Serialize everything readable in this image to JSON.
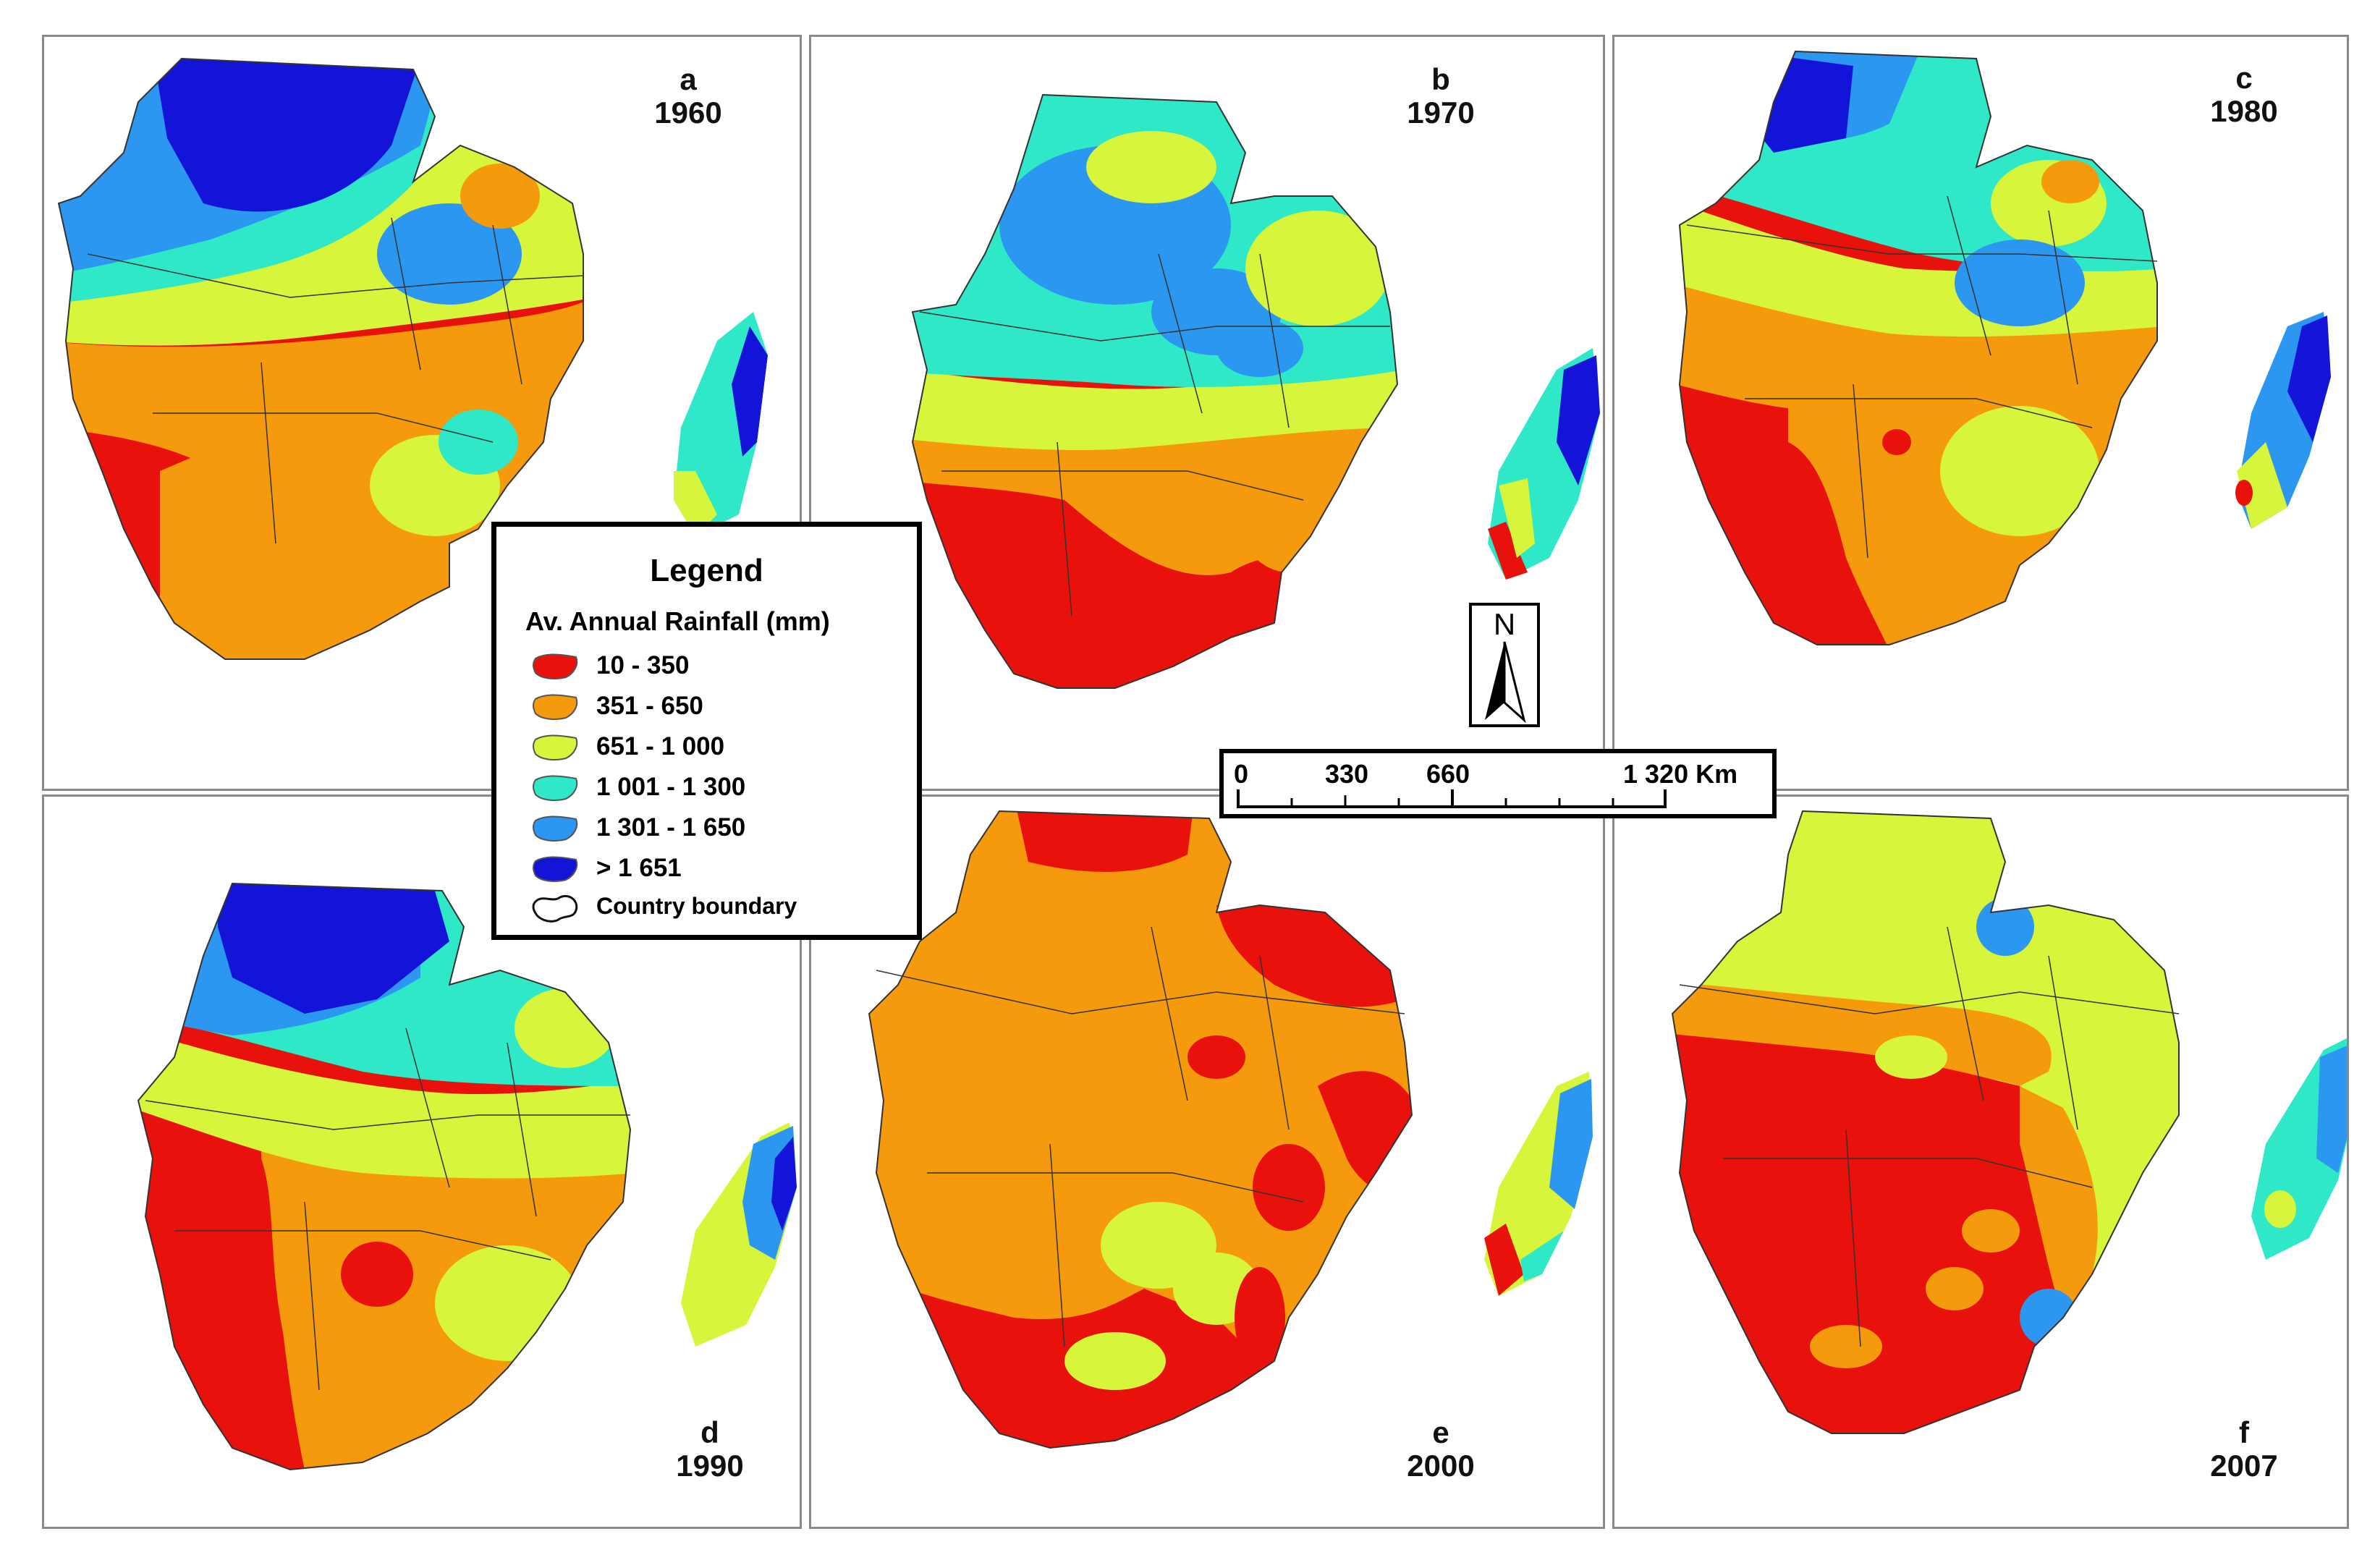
{
  "panels": [
    {
      "letter": "a",
      "year": "1960"
    },
    {
      "letter": "b",
      "year": "1970"
    },
    {
      "letter": "c",
      "year": "1980"
    },
    {
      "letter": "d",
      "year": "1990"
    },
    {
      "letter": "e",
      "year": "2000"
    },
    {
      "letter": "f",
      "year": "2007"
    }
  ],
  "legend": {
    "title": "Legend",
    "subtitle": "Av. Annual Rainfall (mm)",
    "items": [
      {
        "label": "10 - 350",
        "color": "#e8110b"
      },
      {
        "label": "351 - 650",
        "color": "#f59a0c"
      },
      {
        "label": "651 - 1 000",
        "color": "#d7f53a"
      },
      {
        "label": "1 001 - 1 300",
        "color": "#2ee8c8"
      },
      {
        "label": "1 301 - 1 650",
        "color": "#2b97f0"
      },
      {
        "label": "> 1 651",
        "color": "#1414d8"
      },
      {
        "label": "Country boundary",
        "color": "#ffffff"
      }
    ]
  },
  "north_arrow": {
    "label": "N"
  },
  "scale_bar": {
    "labels": [
      "0",
      "330",
      "660",
      "1 320 Km"
    ]
  },
  "colors": {
    "c1": "#e8110b",
    "c2": "#f59a0c",
    "c3": "#d7f53a",
    "c4": "#2ee8c8",
    "c5": "#2b97f0",
    "c6": "#1414d8"
  }
}
